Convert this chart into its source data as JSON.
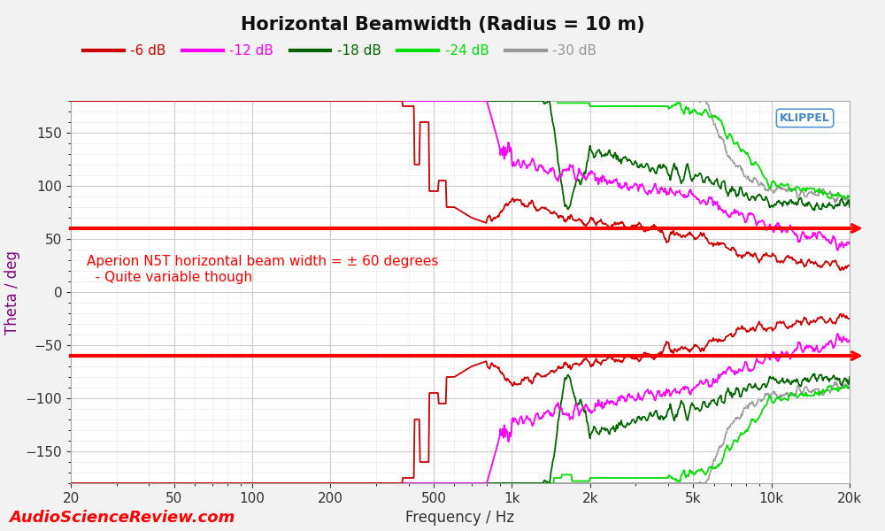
{
  "title": "Horizontal Beamwidth (Radius = 10 m)",
  "xlabel": "Frequency / Hz",
  "ylabel": "Theta / deg",
  "xlim_log": [
    20,
    20000
  ],
  "ylim": [
    -180,
    180
  ],
  "yticks": [
    -150,
    -100,
    -50,
    0,
    50,
    100,
    150
  ],
  "hlines": [
    60,
    -60
  ],
  "hline_color": "#ff0000",
  "hline_lw": 3.0,
  "annotation1": "Aperion N5T horizontal beam width = ± 60 degrees",
  "annotation2": "  - Quite variable though",
  "annotation_color": "#ff0000",
  "watermark": "AudioScienceReview.com",
  "watermark_color": "#ff0000",
  "klippel_color": "#4488cc",
  "legend_labels": [
    "-6 dB",
    "-12 dB",
    "-18 dB",
    "-24 dB",
    "-30 dB"
  ],
  "legend_colors": [
    "#cc0000",
    "#ff00ff",
    "#006400",
    "#00dd00",
    "#999999"
  ],
  "bg_color": "#f2f2f2",
  "plot_bg": "#ffffff",
  "grid_major_color": "#cccccc",
  "grid_minor_color": "#e8e8e8",
  "xtick_labels": [
    "20",
    "50",
    "100",
    "200",
    "500",
    "1k",
    "2k",
    "5k",
    "10k",
    "20k"
  ],
  "xtick_vals": [
    20,
    50,
    100,
    200,
    500,
    1000,
    2000,
    5000,
    10000,
    20000
  ]
}
